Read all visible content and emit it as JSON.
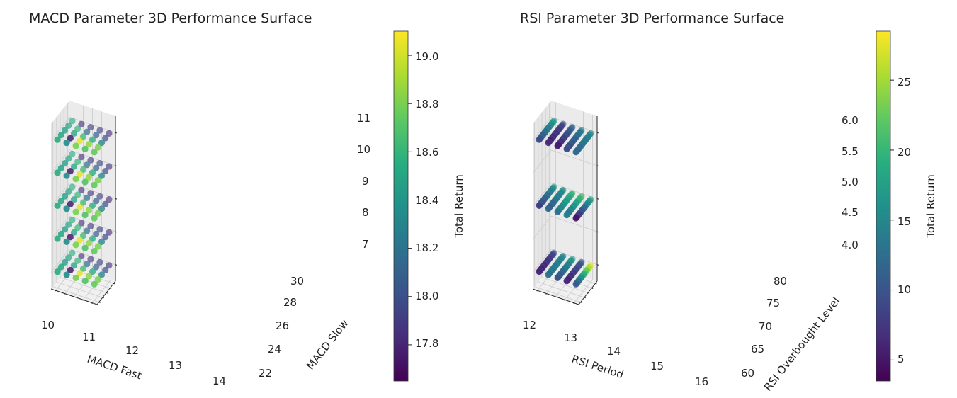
{
  "chart_data": [
    {
      "type": "scatter3d",
      "title": "MACD Parameter 3D Performance Surface",
      "xlabel": "MACD Fast",
      "ylabel": "MACD Slow",
      "zlabel": "",
      "x_ticks": [
        "10",
        "11",
        "12",
        "13",
        "14"
      ],
      "y_ticks": [
        "22",
        "24",
        "26",
        "28",
        "30"
      ],
      "z_ticks": [
        "7",
        "8",
        "9",
        "10",
        "11"
      ],
      "xlim": [
        10,
        14
      ],
      "ylim": [
        22,
        30
      ],
      "zlim": [
        7,
        11
      ],
      "x_values": [
        10,
        11,
        12,
        13,
        14
      ],
      "y_values": [
        22,
        24,
        26,
        28,
        30
      ],
      "z_values": [
        7,
        8,
        9,
        10,
        11
      ],
      "colorbar": {
        "label": "Total Return",
        "range": [
          17.65,
          19.1
        ],
        "ticks": [
          "17.8",
          "18.0",
          "18.2",
          "18.4",
          "18.6",
          "18.8",
          "19.0"
        ],
        "tick_values": [
          17.8,
          18.0,
          18.2,
          18.4,
          18.6,
          18.8,
          19.0
        ]
      },
      "colormap": "viridis",
      "grid": true,
      "returns_by_fast": [
        [
          18.55,
          18.5,
          18.45,
          18.5,
          18.55
        ],
        [
          18.35,
          17.75,
          18.5,
          18.6,
          17.85
        ],
        [
          18.8,
          19.05,
          18.65,
          18.15,
          17.9
        ],
        [
          18.7,
          18.85,
          18.55,
          18.1,
          17.95
        ],
        [
          18.75,
          18.8,
          18.3,
          18.0,
          17.85
        ]
      ]
    },
    {
      "type": "scatter3d",
      "title": "RSI Parameter 3D Performance Surface",
      "xlabel": "RSI Period",
      "ylabel": "RSI Overbought Level",
      "zlabel": "",
      "x_ticks": [
        "12",
        "13",
        "14",
        "15",
        "16"
      ],
      "y_ticks": [
        "60",
        "65",
        "70",
        "75",
        "80"
      ],
      "z_ticks": [
        "4.0",
        "4.5",
        "5.0",
        "5.5",
        "6.0"
      ],
      "xlim": [
        12,
        16
      ],
      "ylim": [
        60,
        80
      ],
      "zlim": [
        4,
        6
      ],
      "x_values": [
        12,
        13,
        14,
        15,
        16
      ],
      "y_range": [
        60,
        80
      ],
      "y_points_per_line": 21,
      "z_values": [
        4,
        5,
        6
      ],
      "colorbar": {
        "label": "Total Return",
        "range": [
          3.5,
          28.5
        ],
        "ticks": [
          "5",
          "10",
          "15",
          "20",
          "25"
        ],
        "tick_values": [
          5,
          10,
          15,
          20,
          25
        ]
      },
      "colormap": "viridis",
      "grid": true,
      "line_returns": [
        [
          [
            6,
            9
          ],
          [
            9,
            16
          ],
          [
            10,
            17
          ]
        ],
        [
          [
            13,
            15
          ],
          [
            11,
            16
          ],
          [
            6,
            9
          ]
        ],
        [
          [
            10,
            17
          ],
          [
            14,
            20
          ],
          [
            6,
            12
          ]
        ],
        [
          [
            6,
            11
          ],
          [
            13,
            21
          ],
          [
            9,
            14
          ]
        ],
        [
          [
            11,
            28
          ],
          [
            6,
            18
          ],
          [
            12,
            15
          ]
        ]
      ]
    }
  ]
}
